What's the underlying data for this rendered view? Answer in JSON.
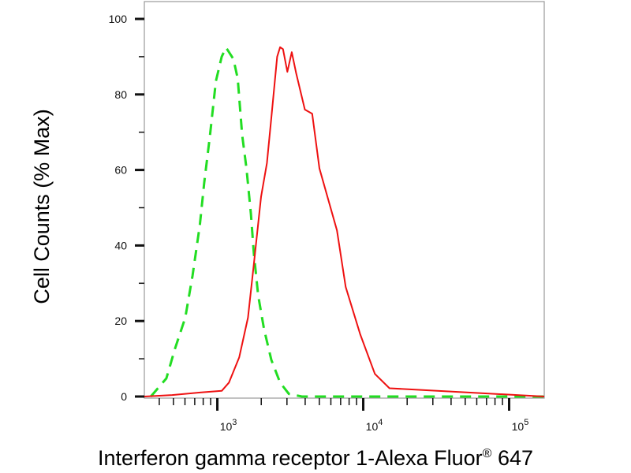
{
  "chart_data": {
    "type": "line",
    "title": "",
    "xlabel": "Interferon gamma receptor 1-Alexa Fluor",
    "xlabel_superscript": "®",
    "xlabel_suffix": " 647",
    "ylabel": "Cell Counts (% Max)",
    "xscale": "log",
    "xlim": [
      316,
      174000
    ],
    "ylim": [
      0,
      100
    ],
    "yticks": [
      0,
      20,
      40,
      60,
      80,
      100
    ],
    "xticks": [
      {
        "base": "10",
        "exp": "3",
        "value": 1000
      },
      {
        "base": "10",
        "exp": "4",
        "value": 10000
      },
      {
        "base": "10",
        "exp": "5",
        "value": 100000
      }
    ],
    "grid": false,
    "series": [
      {
        "color": "#22dd22",
        "style": "dashed",
        "x": [
          350,
          447,
          513,
          603,
          676,
          759,
          813,
          891,
          977,
          1072,
          1148,
          1288,
          1380,
          1479,
          1585,
          1698,
          1778,
          1905,
          2089,
          2344,
          2692,
          3090,
          3802,
          174000
        ],
        "y": [
          0,
          4.8,
          12.7,
          20.9,
          32,
          45.5,
          56.6,
          69.3,
          83.5,
          90,
          92.4,
          89.4,
          84.2,
          69.3,
          60.4,
          48.4,
          38,
          26.8,
          17.9,
          9.7,
          3.7,
          0.7,
          0,
          0
        ]
      },
      {
        "color": "#ee1111",
        "style": "solid",
        "x": [
          316,
          490,
          776,
          1072,
          1202,
          1413,
          1622,
          1778,
          1995,
          2188,
          2344,
          2570,
          2692,
          2818,
          3020,
          3236,
          3467,
          3981,
          4467,
          5012,
          6607,
          7586,
          9550,
          12023,
          15136,
          174000
        ],
        "y": [
          0,
          0.4,
          1.1,
          1.5,
          3.7,
          10.4,
          20.9,
          35,
          52.9,
          61.8,
          73.8,
          90,
          92.5,
          92,
          86,
          91.2,
          85.7,
          76,
          74.9,
          60.4,
          44,
          29,
          16.4,
          6,
          2.2,
          0
        ]
      }
    ]
  }
}
